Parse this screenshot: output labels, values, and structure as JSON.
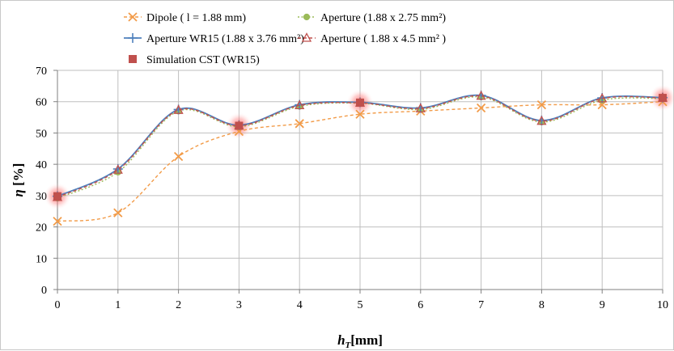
{
  "chart_data": {
    "type": "line",
    "xlabel": "h",
    "xlabel_sub": "T",
    "xlabel_unit": "[mm]",
    "ylabel": "η",
    "ylabel_unit": "[%]",
    "xlim": [
      0,
      10
    ],
    "ylim": [
      0,
      70
    ],
    "xticks": [
      "0",
      "1",
      "2",
      "3",
      "4",
      "5",
      "6",
      "7",
      "8",
      "9",
      "10"
    ],
    "yticks": [
      "0",
      "10",
      "20",
      "30",
      "40",
      "50",
      "60",
      "70"
    ],
    "grid": true,
    "legend_position": "top",
    "series": [
      {
        "name": "Dipole ( l = 1.88 mm)",
        "color": "#f29b48",
        "marker": "x",
        "dash": "dashed",
        "x": [
          0,
          1,
          2,
          3,
          4,
          5,
          6,
          7,
          8,
          9,
          10
        ],
        "y": [
          21.8,
          24.5,
          42.5,
          50.5,
          53.0,
          56.0,
          57.0,
          58.0,
          59.0,
          59.0,
          60.0
        ]
      },
      {
        "name": "Aperture (1.88 x 2.75 mm²)",
        "color": "#9bbb59",
        "marker": "circle",
        "dash": "dotted",
        "x": [
          0,
          1,
          2,
          3,
          4,
          5,
          6,
          7,
          8,
          9,
          10
        ],
        "y": [
          29.2,
          37.5,
          57.0,
          52.0,
          58.5,
          59.5,
          57.5,
          61.5,
          53.5,
          60.5,
          61.0
        ]
      },
      {
        "name": "Aperture WR15 (1.88 x 3.76 mm²)",
        "color": "#4f81bd",
        "marker": "plus",
        "dash": "solid",
        "x": [
          0,
          1,
          2,
          3,
          4,
          5,
          6,
          7,
          8,
          9,
          10
        ],
        "y": [
          29.8,
          38.5,
          57.5,
          52.5,
          59.0,
          59.8,
          58.0,
          62.0,
          54.0,
          61.2,
          61.3
        ]
      },
      {
        "name": "Aperture ( 1.88 x 4.5 mm² )",
        "color": "#c0504d",
        "marker": "triangle",
        "dash": "dashed",
        "x": [
          0,
          1,
          2,
          3,
          4,
          5,
          6,
          7,
          8,
          9,
          10
        ],
        "y": [
          29.5,
          38.2,
          57.3,
          52.3,
          58.8,
          59.6,
          57.8,
          61.8,
          53.8,
          61.0,
          61.2
        ]
      },
      {
        "name": "Simulation CST (WR15)",
        "color": "#c0504d",
        "marker": "square",
        "dash": "none",
        "x": [
          0,
          3,
          5,
          10
        ],
        "y": [
          29.8,
          52.3,
          59.7,
          61.2
        ]
      }
    ]
  }
}
